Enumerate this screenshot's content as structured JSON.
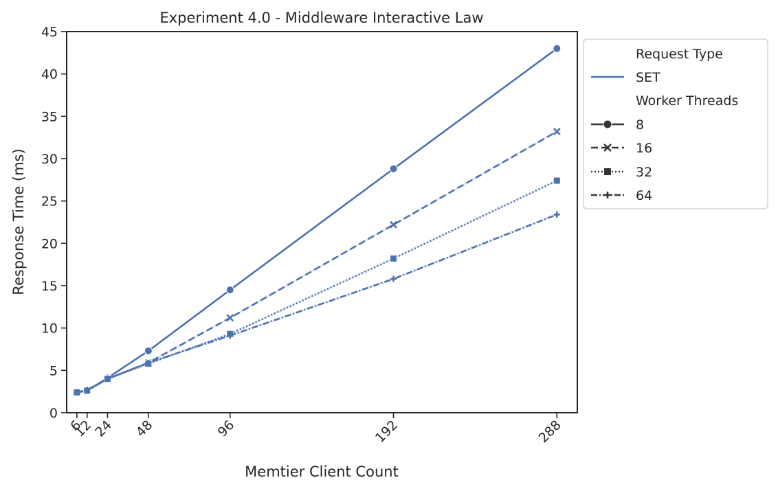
{
  "chart_data": {
    "type": "line",
    "title": "Experiment 4.0 - Middleware Interactive Law",
    "xlabel": "Memtier Client Count",
    "ylabel": "Response Time (ms)",
    "x": [
      6,
      12,
      24,
      48,
      96,
      192,
      288
    ],
    "x_ticks": [
      "6",
      "12",
      "24",
      "48",
      "96",
      "192",
      "288"
    ],
    "y_ticks": [
      "0",
      "5",
      "10",
      "15",
      "20",
      "25",
      "30",
      "35",
      "40",
      "45"
    ],
    "xlim": [
      0,
      300
    ],
    "ylim": [
      0,
      45
    ],
    "grid": false,
    "legend_position": "outside-top-right",
    "color": "#4c72b0",
    "legend": {
      "hue_title": "Request Type",
      "hue_entries": [
        "SET"
      ],
      "style_title": "Worker Threads"
    },
    "series": [
      {
        "name": "8",
        "marker": "circle",
        "dash": "solid",
        "values": [
          2.4,
          2.6,
          4.1,
          7.3,
          14.5,
          28.8,
          43.0
        ]
      },
      {
        "name": "16",
        "marker": "x",
        "dash": "dashed",
        "values": [
          2.4,
          2.6,
          4.0,
          5.9,
          11.2,
          22.2,
          33.2
        ]
      },
      {
        "name": "32",
        "marker": "square",
        "dash": "dotted",
        "values": [
          2.4,
          2.6,
          4.0,
          5.8,
          9.3,
          18.2,
          27.4
        ]
      },
      {
        "name": "64",
        "marker": "plus",
        "dash": "dashdot",
        "values": [
          2.4,
          2.7,
          4.0,
          5.9,
          9.1,
          15.8,
          23.4
        ]
      }
    ]
  }
}
